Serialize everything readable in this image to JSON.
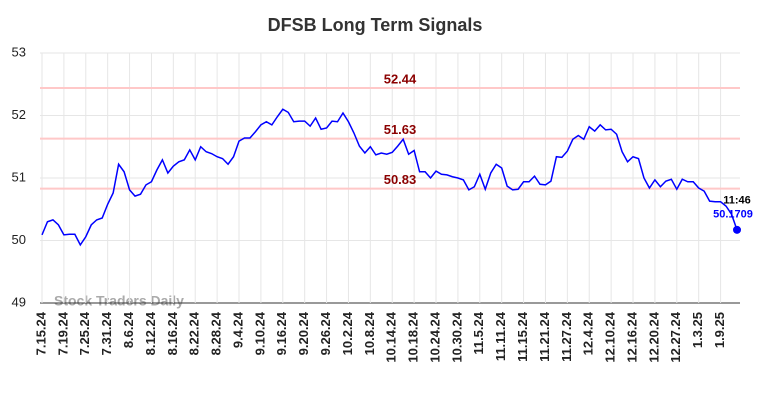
{
  "chart_data": {
    "type": "line",
    "title": "DFSB Long Term Signals",
    "categories": [
      "7.15.24",
      null,
      null,
      null,
      "7.19.24",
      null,
      null,
      null,
      "7.25.24",
      null,
      null,
      null,
      "7.31.24",
      null,
      null,
      null,
      "8.6.24",
      null,
      null,
      null,
      "8.12.24",
      null,
      null,
      null,
      "8.16.24",
      null,
      null,
      null,
      "8.22.24",
      null,
      null,
      null,
      "8.28.24",
      null,
      null,
      null,
      "9.4.24",
      null,
      null,
      null,
      "9.10.24",
      null,
      null,
      null,
      "9.16.24",
      null,
      null,
      null,
      "9.20.24",
      null,
      null,
      null,
      "9.26.24",
      null,
      null,
      null,
      "10.2.24",
      null,
      null,
      null,
      "10.8.24",
      null,
      null,
      null,
      "10.14.24",
      null,
      null,
      null,
      "10.18.24",
      null,
      null,
      null,
      "10.24.24",
      null,
      null,
      null,
      "10.30.24",
      null,
      null,
      null,
      "11.5.24",
      null,
      null,
      null,
      "11.11.24",
      null,
      null,
      null,
      "11.15.24",
      null,
      null,
      null,
      "11.21.24",
      null,
      null,
      null,
      "11.27.24",
      null,
      null,
      null,
      "12.4.24",
      null,
      null,
      null,
      "12.10.24",
      null,
      null,
      null,
      "12.16.24",
      null,
      null,
      null,
      "12.20.24",
      null,
      null,
      null,
      "12.27.24",
      null,
      null,
      null,
      "1.3.25",
      null,
      null,
      null,
      "1.9.25",
      null,
      null,
      null
    ],
    "series": [
      {
        "name": "DFSB",
        "color": "#0000ff",
        "values": [
          50.09,
          50.3,
          50.33,
          50.25,
          50.09,
          50.1,
          50.1,
          49.93,
          50.06,
          50.25,
          50.33,
          50.36,
          50.58,
          50.76,
          51.22,
          51.1,
          50.81,
          50.71,
          50.74,
          50.89,
          50.94,
          51.13,
          51.29,
          51.08,
          51.19,
          51.26,
          51.29,
          51.45,
          51.29,
          51.5,
          51.42,
          51.39,
          51.34,
          51.31,
          51.22,
          51.34,
          51.59,
          51.64,
          51.64,
          51.74,
          51.85,
          51.9,
          51.85,
          51.98,
          52.1,
          52.05,
          51.9,
          51.91,
          51.91,
          51.83,
          51.96,
          51.78,
          51.8,
          51.91,
          51.9,
          52.04,
          51.9,
          51.72,
          51.51,
          51.4,
          51.5,
          51.37,
          51.4,
          51.38,
          51.41,
          51.51,
          51.62,
          51.38,
          51.44,
          51.1,
          51.1,
          51.0,
          51.11,
          51.06,
          51.05,
          51.02,
          51.0,
          50.97,
          50.81,
          50.86,
          51.06,
          50.82,
          51.08,
          51.22,
          51.16,
          50.87,
          50.81,
          50.82,
          50.94,
          50.94,
          51.03,
          50.9,
          50.89,
          50.95,
          51.34,
          51.33,
          51.43,
          51.62,
          51.68,
          51.62,
          51.82,
          51.75,
          51.85,
          51.77,
          51.78,
          51.7,
          51.42,
          51.26,
          51.34,
          51.31,
          51.0,
          50.84,
          50.97,
          50.86,
          50.95,
          50.98,
          50.82,
          50.98,
          50.94,
          50.94,
          50.84,
          50.79,
          50.63,
          50.62,
          50.62,
          50.55,
          50.42,
          50.1709
        ]
      }
    ],
    "levels": [
      52.44,
      51.63,
      50.83
    ],
    "level_color": "#ffc8c8",
    "level_label_color": "#8b0000",
    "annotation": "11:46",
    "watermark": "Stock Traders Daily",
    "ylim": [
      49,
      53
    ],
    "yticks": [
      49,
      50,
      51,
      52,
      53
    ],
    "grid": true
  }
}
